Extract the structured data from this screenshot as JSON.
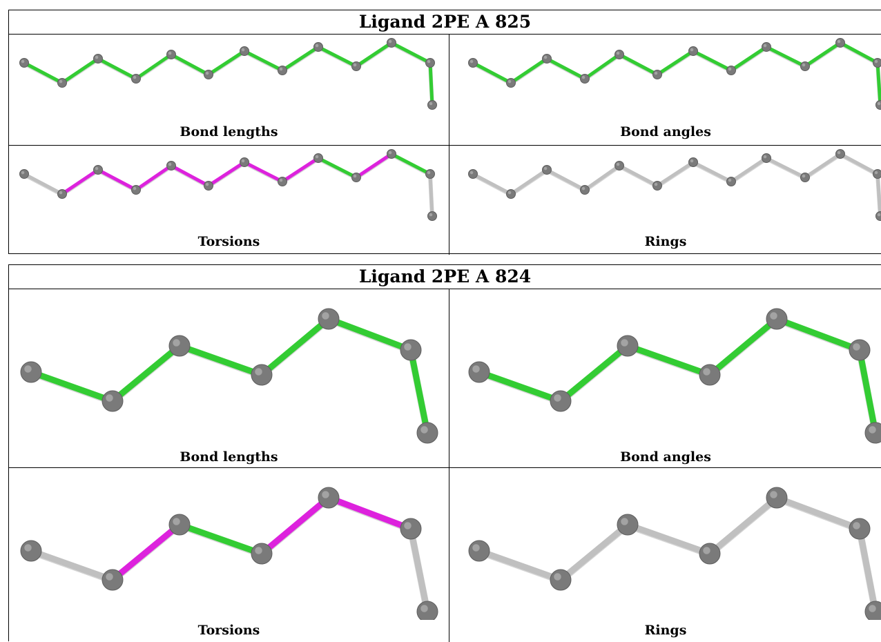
{
  "colors": {
    "lengths": "#33cc33",
    "angles": "#33cc33",
    "torsion_hi": "#dd22dd",
    "neutral": "#c0c0c0",
    "atom": "#7a7a7a"
  },
  "panels": [
    {
      "title": "Ligand 2PE A 825",
      "captions": [
        "Bond lengths",
        "Bond angles",
        "Torsions",
        "Rings"
      ]
    },
    {
      "title": "Ligand 2PE A 824",
      "captions": [
        "Bond lengths",
        "Bond angles",
        "Torsions",
        "Rings"
      ]
    }
  ]
}
